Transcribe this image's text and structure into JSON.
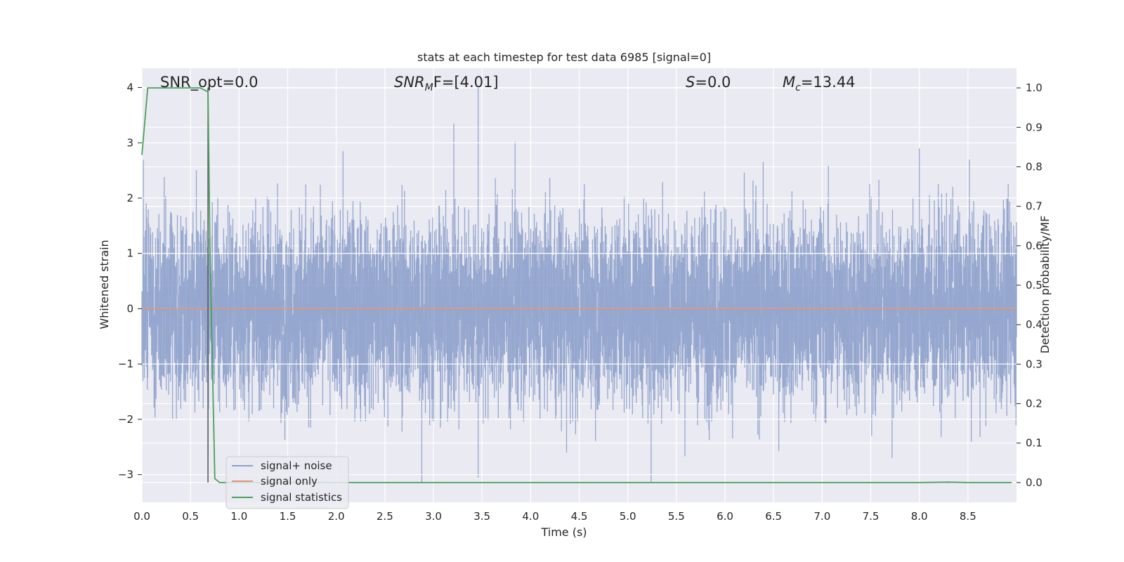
{
  "chart_data": {
    "type": "line",
    "title": "stats at each timestep for test data 6985 [signal=0]",
    "xlabel": "Time (s)",
    "ylabel": "Whitened strain",
    "y2label": "Detection probability/MF",
    "xlim": [
      0.0,
      9.0
    ],
    "ylim": [
      -3.5,
      4.35
    ],
    "y2lim": [
      -0.05,
      1.05
    ],
    "xticks": [
      "0.0",
      "0.5",
      "1.0",
      "1.5",
      "2.0",
      "2.5",
      "3.0",
      "3.5",
      "4.0",
      "4.5",
      "5.0",
      "5.5",
      "6.0",
      "6.5",
      "7.0",
      "7.5",
      "8.0",
      "8.5"
    ],
    "yticks": [
      "4",
      "3",
      "2",
      "1",
      "0",
      "−1",
      "−2",
      "−3"
    ],
    "y2ticks": [
      "1.0",
      "0.9",
      "0.8",
      "0.7",
      "0.6",
      "0.5",
      "0.4",
      "0.3",
      "0.2",
      "0.1",
      "0.0"
    ],
    "annotations": {
      "snr_opt": "SNR_opt=0.0",
      "snr_mf_main": "SNR",
      "snr_mf_sub": "M",
      "snr_mf_tail": "F=[4.01]",
      "s_main": "S",
      "s_tail": "=0.0",
      "mc_main": "M",
      "mc_sub": "c",
      "mc_tail": "=13.44"
    },
    "marker_line_x": 0.68,
    "series": [
      {
        "name": "signal+ noise",
        "color": "#8da0cb",
        "axis": "left",
        "description": "whitened noise, roughly gaussian, range about -3.2 to 4.0",
        "spikes": [
          {
            "x": 3.21,
            "y": 3.35
          },
          {
            "x": 3.46,
            "y": 4.0
          },
          {
            "x": 3.84,
            "y": 3.02
          },
          {
            "x": 2.07,
            "y": 2.85
          },
          {
            "x": 8.0,
            "y": 2.9
          },
          {
            "x": 2.88,
            "y": -3.15
          },
          {
            "x": 5.24,
            "y": -3.15
          },
          {
            "x": 3.46,
            "y": -3.05
          },
          {
            "x": 0.68,
            "y": -2.65
          },
          {
            "x": 4.37,
            "y": -2.6
          },
          {
            "x": 7.72,
            "y": -2.7
          }
        ]
      },
      {
        "name": "signal only",
        "color": "#e5916b",
        "axis": "left",
        "x": [
          0.0,
          9.0
        ],
        "y": [
          0.0,
          0.0
        ]
      },
      {
        "name": "signal statistics",
        "color": "#4aa05a",
        "axis": "right",
        "x": [
          0.0,
          0.06,
          0.12,
          0.2,
          0.4,
          0.6,
          0.68,
          0.7,
          0.75,
          0.8,
          1.0,
          2.0,
          3.0,
          4.0,
          5.0,
          6.0,
          7.0,
          8.0,
          8.3,
          8.5,
          8.95
        ],
        "y": [
          0.83,
          1.0,
          1.0,
          1.0,
          1.0,
          1.0,
          0.99,
          0.6,
          0.01,
          0.0,
          0.0,
          0.0,
          0.0,
          0.0,
          0.0,
          0.0,
          0.0,
          0.0,
          0.001,
          0.0,
          0.0
        ]
      }
    ],
    "legend": {
      "placement": "lower-left",
      "entries": [
        "signal+ noise",
        "signal only",
        "signal statistics"
      ]
    },
    "grid": true,
    "background": "#eaeaf2"
  }
}
